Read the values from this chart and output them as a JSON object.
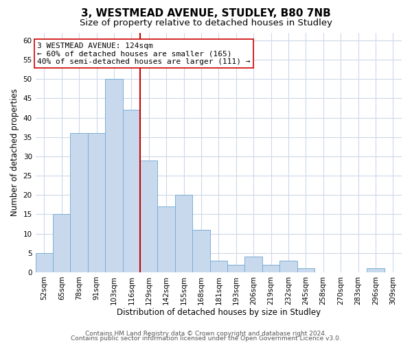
{
  "title": "3, WESTMEAD AVENUE, STUDLEY, B80 7NB",
  "subtitle": "Size of property relative to detached houses in Studley",
  "xlabel": "Distribution of detached houses by size in Studley",
  "ylabel": "Number of detached properties",
  "bar_labels": [
    "52sqm",
    "65sqm",
    "78sqm",
    "91sqm",
    "103sqm",
    "116sqm",
    "129sqm",
    "142sqm",
    "155sqm",
    "168sqm",
    "181sqm",
    "193sqm",
    "206sqm",
    "219sqm",
    "232sqm",
    "245sqm",
    "258sqm",
    "270sqm",
    "283sqm",
    "296sqm",
    "309sqm"
  ],
  "bar_values": [
    5,
    15,
    36,
    36,
    50,
    42,
    29,
    17,
    20,
    11,
    3,
    2,
    4,
    2,
    3,
    1,
    0,
    0,
    0,
    1,
    0
  ],
  "bar_color": "#c8d9ee",
  "bar_edge_color": "#7bafd4",
  "vline_x_idx": 5,
  "vline_color": "#cc0000",
  "annotation_title": "3 WESTMEAD AVENUE: 124sqm",
  "annotation_line1": "← 60% of detached houses are smaller (165)",
  "annotation_line2": "40% of semi-detached houses are larger (111) →",
  "annotation_box_color": "#ffffff",
  "annotation_box_edge_color": "#cc0000",
  "ylim": [
    0,
    62
  ],
  "yticks": [
    0,
    5,
    10,
    15,
    20,
    25,
    30,
    35,
    40,
    45,
    50,
    55,
    60
  ],
  "footer1": "Contains HM Land Registry data © Crown copyright and database right 2024.",
  "footer2": "Contains public sector information licensed under the Open Government Licence v3.0.",
  "background_color": "#ffffff",
  "grid_color": "#ccd8e8",
  "title_fontsize": 11,
  "subtitle_fontsize": 9.5,
  "axis_label_fontsize": 8.5,
  "tick_fontsize": 7.5,
  "annotation_fontsize": 8,
  "footer_fontsize": 6.5
}
